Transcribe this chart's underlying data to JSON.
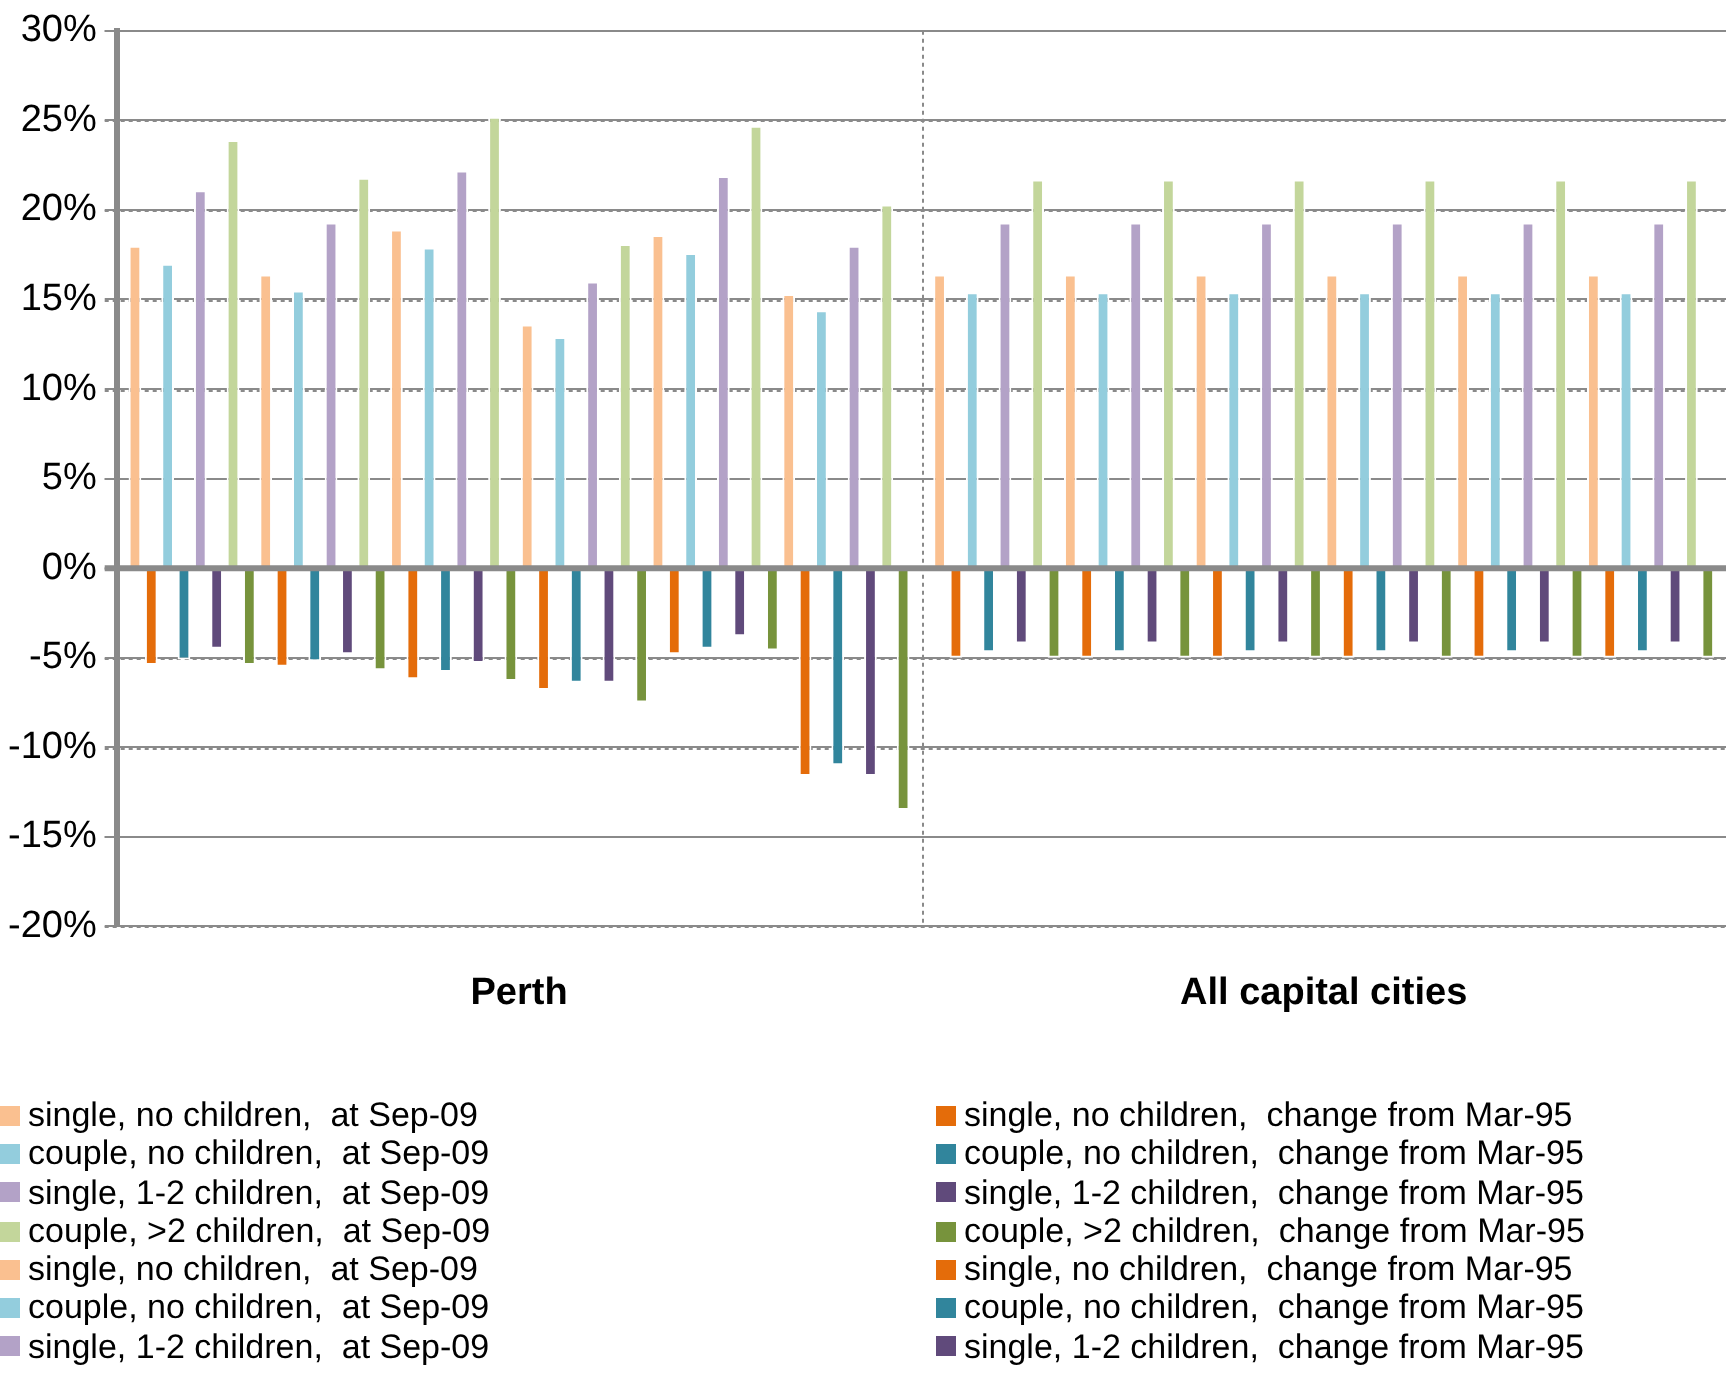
{
  "chart_data": {
    "type": "bar",
    "categories": [
      "Perth",
      "All capital cities"
    ],
    "ylim": [
      -20,
      30
    ],
    "yticks": [
      {
        "value": -20,
        "label": "-20%"
      },
      {
        "value": -15,
        "label": "-15%"
      },
      {
        "value": -10,
        "label": "-10%"
      },
      {
        "value": -5,
        "label": "-5%"
      },
      {
        "value": 0,
        "label": "0%"
      },
      {
        "value": 5,
        "label": "5%"
      },
      {
        "value": 10,
        "label": "10%"
      },
      {
        "value": 15,
        "label": "15%"
      },
      {
        "value": 20,
        "label": "20%"
      },
      {
        "value": 25,
        "label": "25%"
      },
      {
        "value": 30,
        "label": "30%"
      }
    ],
    "grid": true,
    "legend": "bottom",
    "series": [
      {
        "name": "single, no children,  at Sep-09",
        "color": "#fac090",
        "values": [
          18.0,
          16.4
        ]
      },
      {
        "name": "single, no children,  change from Mar-95",
        "color": "#e46c0a",
        "values": [
          -5.4,
          -5.0
        ]
      },
      {
        "name": "couple, no children,  at Sep-09",
        "color": "#93cddd",
        "values": [
          17.0,
          15.4
        ]
      },
      {
        "name": "couple, no children,  change from Mar-95",
        "color": "#31859c",
        "values": [
          -5.1,
          -4.7
        ]
      },
      {
        "name": "single, 1-2 children,  at Sep-09",
        "color": "#b3a2c7",
        "values": [
          21.1,
          19.3
        ]
      },
      {
        "name": "single, 1-2 children,  change from Mar-95",
        "color": "#604a7b",
        "values": [
          -4.5,
          -4.2
        ]
      },
      {
        "name": "couple, >2 children,  at Sep-09",
        "color": "#c3d69b",
        "values": [
          23.9,
          21.7
        ]
      },
      {
        "name": "couple, >2 children,  change from Mar-95",
        "color": "#77933c",
        "values": [
          -5.4,
          -5.0
        ]
      },
      {
        "name": "single, no children,  at Sep-09",
        "color": "#fac090",
        "values": [
          16.4,
          16.4
        ]
      },
      {
        "name": "single, no children,  change from Mar-95",
        "color": "#e46c0a",
        "values": [
          -5.5,
          -5.0
        ]
      },
      {
        "name": "couple, no children,  at Sep-09",
        "color": "#93cddd",
        "values": [
          15.5,
          15.4
        ]
      },
      {
        "name": "couple, no children,  change from Mar-95",
        "color": "#31859c",
        "values": [
          -5.2,
          -4.7
        ]
      },
      {
        "name": "single, 1-2 children,  at Sep-09",
        "color": "#b3a2c7",
        "values": [
          19.3,
          19.3
        ]
      },
      {
        "name": "single, 1-2 children,  change from Mar-95",
        "color": "#604a7b",
        "values": [
          -4.8,
          -4.2
        ]
      },
      {
        "color": "#c3d69b",
        "values": [
          21.8,
          21.7
        ]
      },
      {
        "color": "#77933c",
        "values": [
          -5.7,
          -5.0
        ]
      },
      {
        "color": "#fac090",
        "values": [
          18.9,
          16.4
        ]
      },
      {
        "color": "#e46c0a",
        "values": [
          -6.2,
          -5.0
        ]
      },
      {
        "color": "#93cddd",
        "values": [
          17.9,
          15.4
        ]
      },
      {
        "color": "#31859c",
        "values": [
          -5.8,
          -4.7
        ]
      },
      {
        "color": "#b3a2c7",
        "values": [
          22.2,
          19.3
        ]
      },
      {
        "color": "#604a7b",
        "values": [
          -5.3,
          -4.2
        ]
      },
      {
        "color": "#c3d69b",
        "values": [
          25.2,
          21.7
        ]
      },
      {
        "color": "#77933c",
        "values": [
          -6.3,
          -5.0
        ]
      },
      {
        "color": "#fac090",
        "values": [
          13.6,
          16.4
        ]
      },
      {
        "color": "#e46c0a",
        "values": [
          -6.8,
          -5.0
        ]
      },
      {
        "color": "#93cddd",
        "values": [
          12.9,
          15.4
        ]
      },
      {
        "color": "#31859c",
        "values": [
          -6.4,
          -4.7
        ]
      },
      {
        "color": "#b3a2c7",
        "values": [
          16.0,
          19.3
        ]
      },
      {
        "color": "#604a7b",
        "values": [
          -6.4,
          -4.2
        ]
      },
      {
        "color": "#c3d69b",
        "values": [
          18.1,
          21.7
        ]
      },
      {
        "color": "#77933c",
        "values": [
          -7.5,
          -5.0
        ]
      },
      {
        "color": "#fac090",
        "values": [
          18.6,
          16.4
        ]
      },
      {
        "color": "#e46c0a",
        "values": [
          -4.8,
          -5.0
        ]
      },
      {
        "color": "#93cddd",
        "values": [
          17.6,
          15.4
        ]
      },
      {
        "color": "#31859c",
        "values": [
          -4.5,
          -4.7
        ]
      },
      {
        "color": "#b3a2c7",
        "values": [
          21.9,
          19.3
        ]
      },
      {
        "color": "#604a7b",
        "values": [
          -3.8,
          -4.2
        ]
      },
      {
        "color": "#c3d69b",
        "values": [
          24.7,
          21.7
        ]
      },
      {
        "color": "#77933c",
        "values": [
          -4.6,
          -5.0
        ]
      },
      {
        "color": "#fac090",
        "values": [
          15.3,
          16.4
        ]
      },
      {
        "color": "#e46c0a",
        "values": [
          -11.6,
          -5.0
        ]
      },
      {
        "color": "#93cddd",
        "values": [
          14.4,
          15.4
        ]
      },
      {
        "color": "#31859c",
        "values": [
          -11.0,
          -4.7
        ]
      },
      {
        "color": "#b3a2c7",
        "values": [
          18.0,
          19.3
        ]
      },
      {
        "color": "#604a7b",
        "values": [
          -11.6,
          -4.2
        ]
      },
      {
        "color": "#c3d69b",
        "values": [
          20.3,
          21.7
        ]
      },
      {
        "color": "#77933c",
        "values": [
          -13.5,
          -5.0
        ]
      }
    ]
  }
}
